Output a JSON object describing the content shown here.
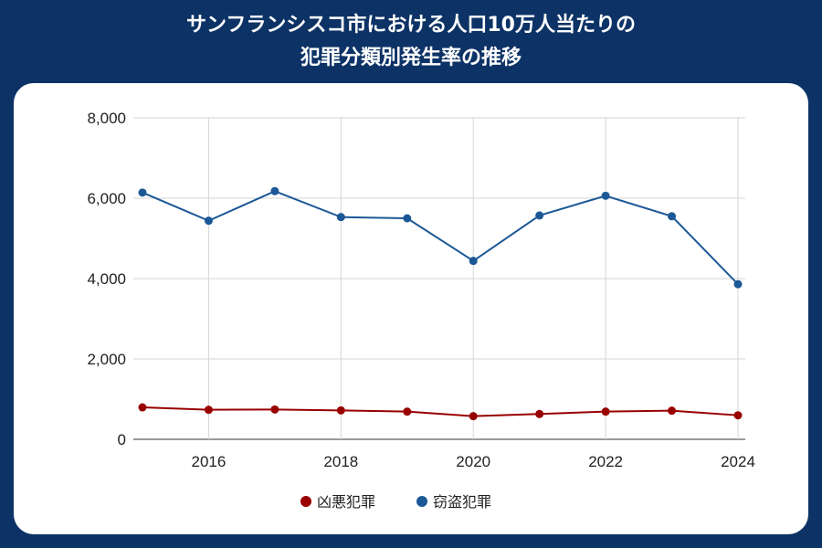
{
  "title_line1": "サンフランシスコ市における人口10万人当たりの",
  "title_line2": "犯罪分類別発生率の推移",
  "chart_data": {
    "type": "line",
    "title": "サンフランシスコ市における人口10万人当たりの犯罪分類別発生率の推移",
    "x": [
      2015,
      2016,
      2017,
      2018,
      2019,
      2020,
      2021,
      2022,
      2023,
      2024
    ],
    "xticks": [
      "2016",
      "2018",
      "2020",
      "2022",
      "2024"
    ],
    "yticks": [
      "0",
      "2,000",
      "4,000",
      "6,000",
      "8,000"
    ],
    "ylim": [
      0,
      8000
    ],
    "xlim": [
      2015,
      2024
    ],
    "grid": true,
    "legend": "bottom",
    "series": [
      {
        "name": "凶悪犯罪",
        "color": "#990000",
        "values": [
          795,
          735,
          742,
          720,
          690,
          576,
          630,
          690,
          712,
          598
        ]
      },
      {
        "name": "窃盗犯罪",
        "color": "#1c5896",
        "values": [
          6140,
          5440,
          6175,
          5530,
          5500,
          4440,
          5570,
          6060,
          5550,
          3860
        ]
      }
    ]
  }
}
